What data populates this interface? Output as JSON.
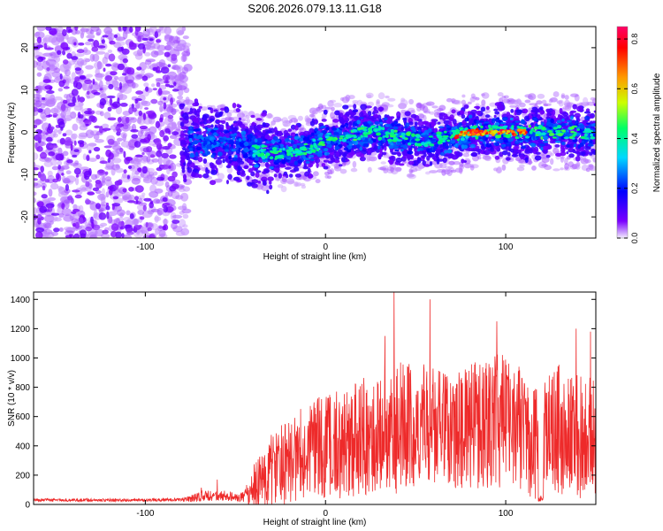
{
  "title": "S206.2026.079.13.11.G18",
  "chart_data": [
    {
      "type": "heatmap",
      "title": "S206.2026.079.13.11.G18",
      "xlabel": "Height of straight line (km)",
      "ylabel": "Frequency (Hz)",
      "xlim": [
        -162,
        150
      ],
      "ylim": [
        -25,
        25
      ],
      "xticks": [
        -100,
        0,
        100
      ],
      "yticks": [
        -20,
        -10,
        0,
        10,
        20
      ],
      "colorbar": {
        "label": "Normalized spectral amplitude",
        "range": [
          0.0,
          0.85
        ],
        "ticks": [
          "0.0",
          "0.2",
          "0.4",
          "0.6",
          "0.8"
        ],
        "colors": [
          "#f4eefe",
          "#7a00ff",
          "#0000ff",
          "#00d8ff",
          "#00ff66",
          "#ccff00",
          "#ff9900",
          "#ff0000",
          "#ff0066"
        ]
      },
      "ridge": {
        "description": "concentrated energy band following the Doppler track",
        "points": [
          [
            -80,
            -3
          ],
          [
            -70,
            -2
          ],
          [
            -50,
            -3
          ],
          [
            -30,
            -5
          ],
          [
            -10,
            -4
          ],
          [
            0,
            -2
          ],
          [
            10,
            -1
          ],
          [
            20,
            0
          ],
          [
            30,
            0
          ],
          [
            40,
            -1
          ],
          [
            50,
            -2
          ],
          [
            60,
            -2
          ],
          [
            70,
            -1
          ],
          [
            80,
            0
          ],
          [
            90,
            0
          ],
          [
            100,
            0
          ],
          [
            110,
            0
          ],
          [
            120,
            0
          ],
          [
            130,
            0
          ],
          [
            145,
            0
          ]
        ],
        "peak_x_range": [
          72,
          112
        ],
        "peak_amplitude": 0.85
      },
      "noise_region_x": [
        -162,
        -80
      ]
    },
    {
      "type": "line",
      "xlabel": "Height of straight line (km)",
      "ylabel": "SNR (10 * v/v)",
      "xlim": [
        -162,
        150
      ],
      "ylim": [
        0,
        1450
      ],
      "xticks": [
        -100,
        0,
        100
      ],
      "yticks": [
        0,
        200,
        400,
        600,
        800,
        1000,
        1200,
        1400
      ],
      "series": [
        {
          "name": "SNR",
          "color": "#ee2a2a",
          "x": [
            -162,
            -140,
            -120,
            -100,
            -80,
            -72,
            -68,
            -60,
            -55,
            -50,
            -45,
            -40,
            -35,
            -30,
            -20,
            -10,
            0,
            10,
            20,
            30,
            40,
            50,
            60,
            70,
            80,
            90,
            100,
            110,
            115,
            120,
            130,
            140,
            150
          ],
          "mean": [
            30,
            30,
            30,
            30,
            32,
            45,
            60,
            55,
            65,
            45,
            50,
            120,
            170,
            230,
            300,
            360,
            400,
            420,
            460,
            500,
            520,
            540,
            530,
            520,
            540,
            560,
            580,
            520,
            400,
            480,
            520,
            480,
            460
          ],
          "amplitude": [
            10,
            10,
            10,
            10,
            12,
            30,
            40,
            30,
            40,
            25,
            40,
            150,
            200,
            250,
            300,
            330,
            360,
            380,
            400,
            420,
            460,
            440,
            420,
            410,
            430,
            450,
            460,
            420,
            380,
            420,
            460,
            440,
            420
          ],
          "notable_peaks": [
            [
              -69,
              115
            ],
            [
              -60,
              170
            ],
            [
              33,
              1150
            ],
            [
              38,
              1450
            ],
            [
              58,
              1400
            ],
            [
              95,
              1250
            ],
            [
              139,
              1200
            ],
            [
              147,
              1180
            ]
          ],
          "dropout_x": [
            118,
            121
          ]
        }
      ]
    }
  ]
}
